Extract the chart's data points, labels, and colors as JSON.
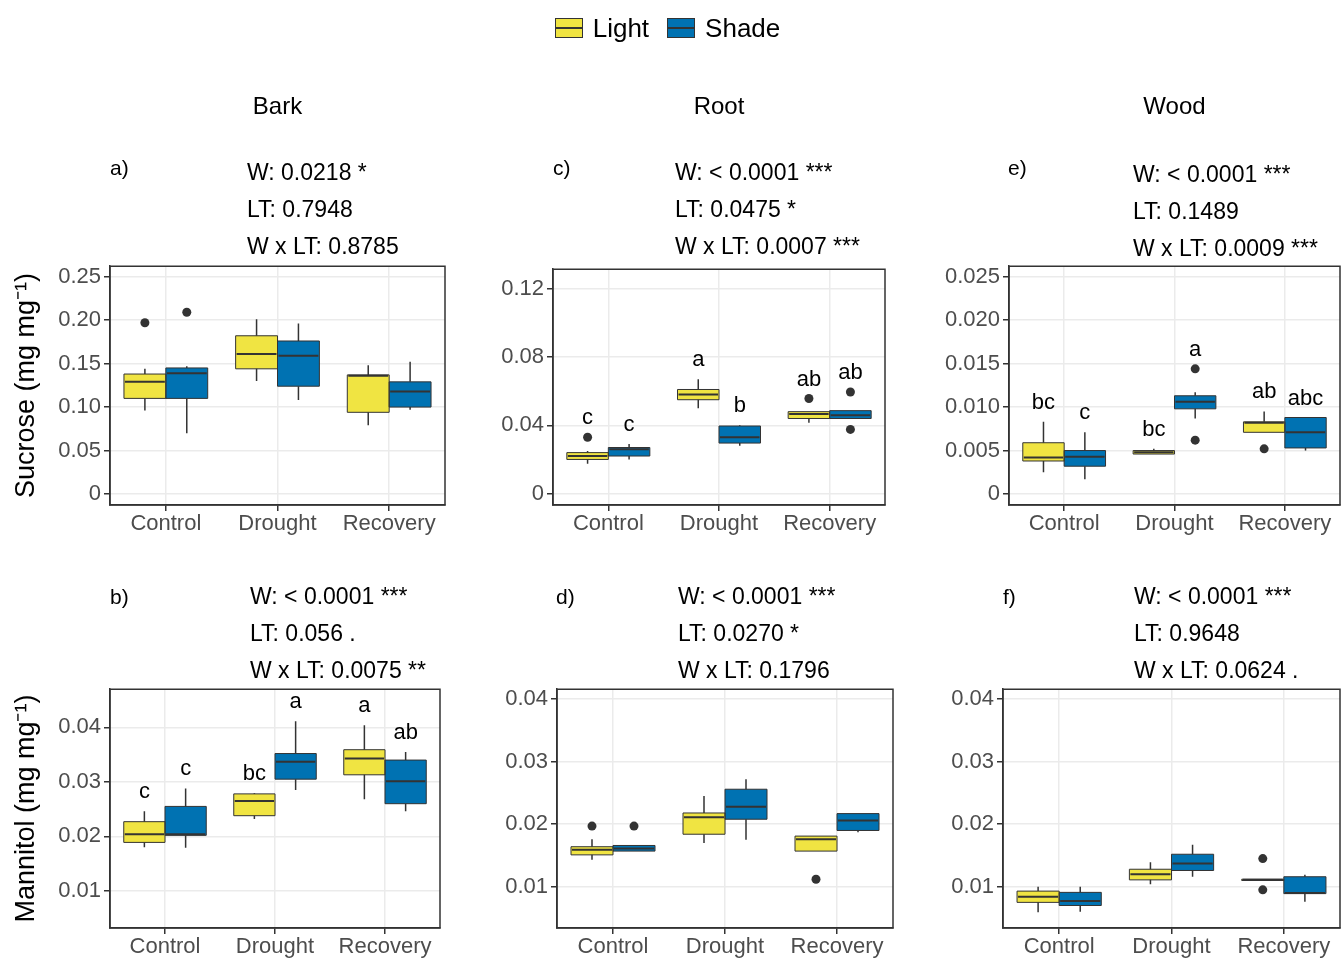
{
  "chart_data": [
    {
      "type": "box",
      "title": "Bark",
      "ylabel": "Sucrose (mg mg⁻¹)",
      "categories": [
        "Control",
        "Drought",
        "Recovery"
      ],
      "legend": "top",
      "grid": true,
      "ylim": [
        -0.0126,
        0.262
      ],
      "yticks": [
        0,
        0.05,
        {
          "value": 0.1,
          "label": "0.10"
        },
        0.15,
        {
          "value": 0.2,
          "label": "0.20"
        },
        0.25
      ],
      "series": [
        {
          "name": "Light",
          "color": "#f0e442",
          "boxes": [
            {
              "low": 0.096,
              "q1": 0.11,
              "median": 0.129,
              "q3": 0.138,
              "high": 0.144,
              "outliers": [
                0.197
              ]
            },
            {
              "low": 0.13,
              "q1": 0.144,
              "median": 0.161,
              "q3": 0.182,
              "high": 0.201
            },
            {
              "low": 0.079,
              "q1": 0.094,
              "median": 0.136,
              "q3": 0.137,
              "high": 0.148
            }
          ]
        },
        {
          "name": "Shade",
          "color": "#0072b2",
          "boxes": [
            {
              "low": 0.07,
              "q1": 0.11,
              "median": 0.139,
              "q3": 0.145,
              "high": 0.147,
              "outliers": [
                0.209
              ]
            },
            {
              "low": 0.108,
              "q1": 0.124,
              "median": 0.159,
              "q3": 0.176,
              "high": 0.196
            },
            {
              "low": 0.097,
              "q1": 0.1,
              "median": 0.118,
              "q3": 0.129,
              "high": 0.152
            }
          ]
        }
      ],
      "annotations": [
        "a)",
        "W: 0.0218 *",
        "LT: 0.7948",
        "W x LT: 0.8785"
      ]
    },
    {
      "type": "box",
      "title": "Root",
      "categories": [
        "Control",
        "Drought",
        "Recovery"
      ],
      "grid": true,
      "ylim": [
        -0.0067,
        0.1315
      ],
      "yticks": [
        0,
        0.04,
        0.08,
        0.12
      ],
      "series": [
        {
          "color": "#f0e442",
          "boxes": [
            {
              "low": 0.0175,
              "q1": 0.02,
              "median": 0.022,
              "q3": 0.024,
              "high": 0.025,
              "outliers": [
                0.033
              ]
            },
            {
              "low": 0.05,
              "q1": 0.055,
              "median": 0.058,
              "q3": 0.061,
              "high": 0.067
            },
            {
              "low": 0.0415,
              "q1": 0.044,
              "median": 0.0467,
              "q3": 0.048,
              "high": 0.048,
              "outliers": [
                0.0557
              ]
            }
          ]
        },
        {
          "color": "#0072b2",
          "boxes": [
            {
              "low": 0.02,
              "q1": 0.022,
              "median": 0.026,
              "q3": 0.027,
              "high": 0.029
            },
            {
              "low": 0.028,
              "q1": 0.0296,
              "median": 0.033,
              "q3": 0.0396,
              "high": 0.04
            },
            {
              "low": 0.044,
              "q1": 0.044,
              "median": 0.0459,
              "q3": 0.0486,
              "high": 0.0486,
              "outliers": [
                0.0595,
                0.0376
              ]
            }
          ]
        }
      ],
      "annotations": [
        "c)",
        "W: < 0.0001 ***",
        "LT: 0.0475 *",
        "W x LT: 0.0007 ***",
        "c",
        "c",
        "a",
        "b",
        "ab",
        "ab"
      ]
    },
    {
      "type": "box",
      "title": "Wood",
      "categories": [
        "Control",
        "Drought",
        "Recovery"
      ],
      "grid": true,
      "ylim": [
        -0.00126,
        0.0262
      ],
      "yticks": [
        0,
        0.005,
        {
          "value": 0.01,
          "label": "0.010"
        },
        0.015,
        {
          "value": 0.02,
          "label": "0.020"
        },
        0.025
      ],
      "series": [
        {
          "color": "#f0e442",
          "boxes": [
            {
              "low": 0.0025,
              "q1": 0.0038,
              "median": 0.0042,
              "q3": 0.0059,
              "high": 0.0083
            },
            {
              "low": 0.0046,
              "q1": 0.0046,
              "median": 0.0048,
              "q3": 0.005,
              "high": 0.0052
            },
            {
              "low": 0.0071,
              "q1": 0.0071,
              "median": 0.0082,
              "q3": 0.0083,
              "high": 0.0095,
              "outliers": [
                0.0052
              ]
            }
          ]
        },
        {
          "color": "#0072b2",
          "boxes": [
            {
              "low": 0.0017,
              "q1": 0.0032,
              "median": 0.0043,
              "q3": 0.005,
              "high": 0.0071
            },
            {
              "low": 0.0087,
              "q1": 0.0098,
              "median": 0.0106,
              "q3": 0.0113,
              "high": 0.0117,
              "outliers": [
                0.0144,
                0.0062
              ]
            },
            {
              "low": 0.005,
              "q1": 0.0053,
              "median": 0.0071,
              "q3": 0.0088,
              "high": 0.0088
            }
          ]
        }
      ],
      "annotations": [
        "e)",
        "W: < 0.0001 ***",
        "LT: 0.1489",
        "W x LT: 0.0009 ***",
        "bc",
        "c",
        "bc",
        "a",
        "ab",
        "abc"
      ]
    },
    {
      "type": "box",
      "ylabel": "Mannitol (mg mg⁻¹)",
      "categories": [
        "Control",
        "Drought",
        "Recovery"
      ],
      "grid": true,
      "ylim": [
        0.0032,
        0.047
      ],
      "yticks": [
        0.01,
        0.02,
        0.03,
        0.04
      ],
      "series": [
        {
          "color": "#f0e442",
          "boxes": [
            {
              "low": 0.018,
              "q1": 0.0189,
              "median": 0.0204,
              "q3": 0.0227,
              "high": 0.0246
            },
            {
              "low": 0.0232,
              "q1": 0.0238,
              "median": 0.0265,
              "q3": 0.0278,
              "high": 0.0279
            },
            {
              "low": 0.0268,
              "q1": 0.0313,
              "median": 0.0343,
              "q3": 0.0359,
              "high": 0.0404
            }
          ]
        },
        {
          "color": "#0072b2",
          "boxes": [
            {
              "low": 0.0179,
              "q1": 0.0202,
              "median": 0.0204,
              "q3": 0.0255,
              "high": 0.0288
            },
            {
              "low": 0.0285,
              "q1": 0.0305,
              "median": 0.0337,
              "q3": 0.0352,
              "high": 0.0411
            },
            {
              "low": 0.0246,
              "q1": 0.026,
              "median": 0.0301,
              "q3": 0.034,
              "high": 0.0355
            }
          ]
        }
      ],
      "annotations": [
        "b)",
        "W: < 0.0001 ***",
        "LT: 0.056 .",
        "W x LT: 0.0075 **",
        "c",
        "c",
        "bc",
        "a",
        "a",
        "ab"
      ]
    },
    {
      "type": "box",
      "categories": [
        "Control",
        "Drought",
        "Recovery"
      ],
      "grid": true,
      "ylim": [
        0.0034,
        0.0416
      ],
      "yticks": [
        0.01,
        0.02,
        0.03,
        0.04
      ],
      "series": [
        {
          "color": "#f0e442",
          "boxes": [
            {
              "low": 0.0143,
              "q1": 0.0151,
              "median": 0.0159,
              "q3": 0.0164,
              "high": 0.0176,
              "outliers": [
                0.0197
              ]
            },
            {
              "low": 0.017,
              "q1": 0.0184,
              "median": 0.0211,
              "q3": 0.0218,
              "high": 0.0245
            },
            {
              "low": 0.0157,
              "q1": 0.0157,
              "median": 0.0176,
              "q3": 0.0181,
              "high": 0.0181,
              "outliers": [
                0.0112
              ]
            }
          ]
        },
        {
          "color": "#0072b2",
          "boxes": [
            {
              "low": 0.0157,
              "q1": 0.0157,
              "median": 0.0161,
              "q3": 0.0166,
              "high": 0.0166,
              "outliers": [
                0.0197
              ]
            },
            {
              "low": 0.0175,
              "q1": 0.0208,
              "median": 0.0228,
              "q3": 0.0256,
              "high": 0.0272
            },
            {
              "low": 0.0187,
              "q1": 0.019,
              "median": 0.0206,
              "q3": 0.0217,
              "high": 0.0217
            }
          ]
        }
      ],
      "annotations": [
        "d)",
        "W: < 0.0001 ***",
        "LT: 0.0270 *",
        "W x LT: 0.1796"
      ]
    },
    {
      "type": "box",
      "categories": [
        "Control",
        "Drought",
        "Recovery"
      ],
      "grid": true,
      "ylim": [
        0.0034,
        0.0416
      ],
      "yticks": [
        0.01,
        0.02,
        0.03,
        0.04
      ],
      "series": [
        {
          "color": "#f0e442",
          "boxes": [
            {
              "low": 0.0059,
              "q1": 0.0075,
              "median": 0.0084,
              "q3": 0.0093,
              "high": 0.01
            },
            {
              "low": 0.0104,
              "q1": 0.0111,
              "median": 0.012,
              "q3": 0.0128,
              "high": 0.0139
            },
            {
              "low": 0.011,
              "q1": 0.011,
              "median": 0.0111,
              "q3": 0.0112,
              "high": 0.0112,
              "outliers": [
                0.0145,
                0.0095
              ]
            }
          ]
        },
        {
          "color": "#0072b2",
          "boxes": [
            {
              "low": 0.006,
              "q1": 0.007,
              "median": 0.0077,
              "q3": 0.0091,
              "high": 0.01
            },
            {
              "low": 0.0116,
              "q1": 0.0126,
              "median": 0.0137,
              "q3": 0.0152,
              "high": 0.0167
            },
            {
              "low": 0.0076,
              "q1": 0.0089,
              "median": 0.009,
              "q3": 0.0116,
              "high": 0.0119
            }
          ]
        }
      ],
      "annotations": [
        "f)",
        "W: < 0.0001 ***",
        "LT: 0.9648",
        "W x LT: 0.0624 ."
      ]
    }
  ]
}
